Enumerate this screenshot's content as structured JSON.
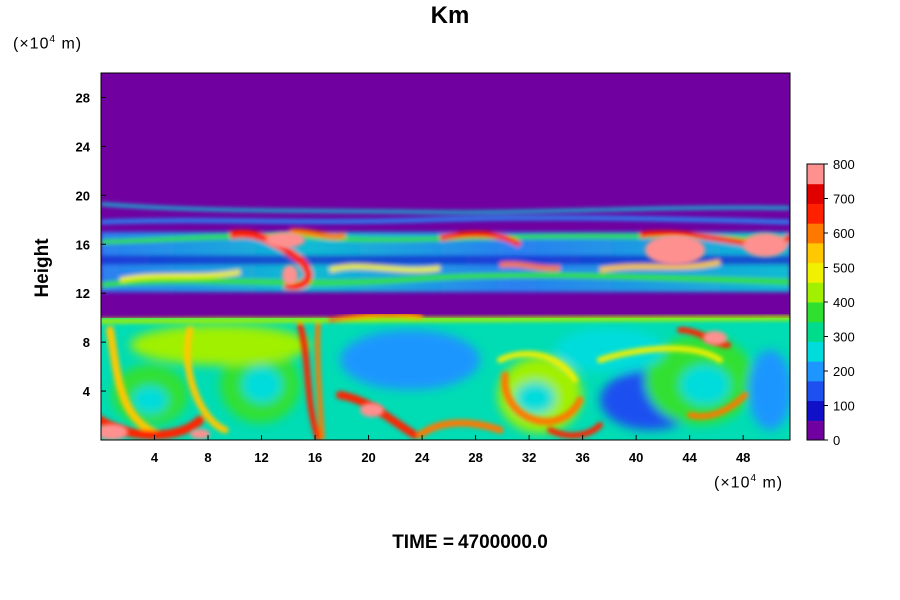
{
  "chart_data": {
    "type": "heatmap",
    "title": "Km",
    "ylabel": "Height",
    "y_unit_prefix": "(×10",
    "y_unit_exp": "4",
    "y_unit_suffix": " m)",
    "x_unit_prefix": "(×10",
    "x_unit_exp": "4",
    "x_unit_suffix": " m)",
    "xlim": [
      0,
      51.5
    ],
    "ylim": [
      0,
      30
    ],
    "x_ticks": [
      4,
      8,
      12,
      16,
      20,
      24,
      28,
      32,
      36,
      40,
      44,
      48
    ],
    "y_ticks": [
      4,
      8,
      12,
      16,
      20,
      24,
      28
    ],
    "colorbar": {
      "min": 0,
      "max": 800,
      "ticks": [
        0,
        100,
        200,
        300,
        400,
        500,
        600,
        700,
        800
      ],
      "colors": [
        "#7000a0",
        "#1010c8",
        "#1e50f0",
        "#1e96ff",
        "#00dcdc",
        "#00dc8c",
        "#30e030",
        "#a0f000",
        "#f0f000",
        "#ffc800",
        "#ff7800",
        "#ff2000",
        "#e00000",
        "#ff9090"
      ]
    },
    "background_color": "#7000a0",
    "regions": [
      {
        "name": "lower-layer",
        "y_range": [
          0,
          10
        ],
        "typical_value": 320
      },
      {
        "name": "gap",
        "y_range": [
          10,
          12
        ],
        "typical_value": 0
      },
      {
        "name": "upper-layer",
        "y_range": [
          12,
          19.5
        ],
        "typical_value": 300
      },
      {
        "name": "stratosphere",
        "y_range": [
          20,
          30
        ],
        "typical_value": 0
      }
    ],
    "vortex_centres": [
      {
        "x": 3.5,
        "y": 3,
        "value": 350
      },
      {
        "x": 12,
        "y": 5,
        "value": 330
      },
      {
        "x": 32.5,
        "y": 3,
        "value": 330
      },
      {
        "x": 45,
        "y": 5,
        "value": 380
      }
    ]
  },
  "footer": {
    "time_label": "TIME =",
    "time_value": "4700000.0"
  }
}
